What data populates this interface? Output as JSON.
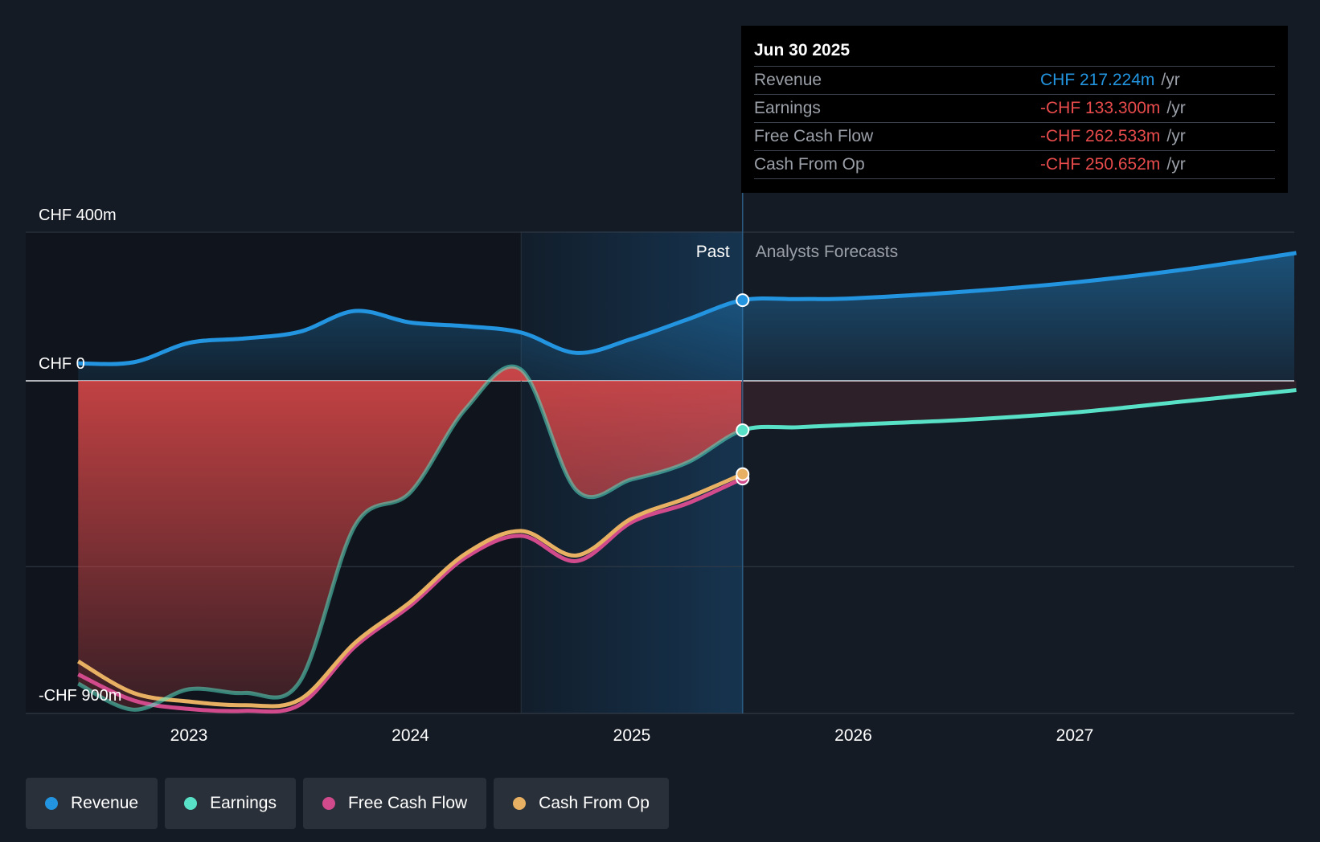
{
  "chart_data": {
    "type": "line",
    "title": "",
    "y_unit": "CHF m",
    "ylim": [
      -900,
      400
    ],
    "y_gridlines": [
      400,
      0,
      -500
    ],
    "y_tick_labels": [
      {
        "value": 400,
        "label": "CHF 400m"
      },
      {
        "value": 0,
        "label": "CHF 0"
      },
      {
        "value": -900,
        "label": "-CHF 900m"
      }
    ],
    "xlim": [
      2022.5,
      2028.0
    ],
    "x_ticks": [
      {
        "value": 2023,
        "label": "2023"
      },
      {
        "value": 2024,
        "label": "2024"
      },
      {
        "value": 2025,
        "label": "2025"
      },
      {
        "value": 2026,
        "label": "2026"
      },
      {
        "value": 2027,
        "label": "2027"
      }
    ],
    "past_label": "Past",
    "forecast_label": "Analysts Forecasts",
    "past_end": 2025.5,
    "highlight_start": 2024.5,
    "series": [
      {
        "name": "Revenue",
        "color": "#2394df",
        "forecast": true,
        "points": [
          [
            2022.5,
            47
          ],
          [
            2022.75,
            50
          ],
          [
            2023.0,
            102
          ],
          [
            2023.25,
            114
          ],
          [
            2023.5,
            132
          ],
          [
            2023.75,
            188
          ],
          [
            2024.0,
            157
          ],
          [
            2024.25,
            147
          ],
          [
            2024.5,
            130
          ],
          [
            2024.75,
            75
          ],
          [
            2025.0,
            113
          ],
          [
            2025.25,
            165
          ],
          [
            2025.5,
            217
          ],
          [
            2025.75,
            220
          ],
          [
            2026.0,
            222
          ],
          [
            2026.5,
            240
          ],
          [
            2027.0,
            265
          ],
          [
            2027.5,
            300
          ],
          [
            2028.0,
            344
          ]
        ]
      },
      {
        "name": "Earnings",
        "color": "#58e1c6",
        "forecast": true,
        "points": [
          [
            2022.5,
            -815
          ],
          [
            2022.75,
            -885
          ],
          [
            2023.0,
            -830
          ],
          [
            2023.25,
            -840
          ],
          [
            2023.5,
            -810
          ],
          [
            2023.75,
            -390
          ],
          [
            2024.0,
            -300
          ],
          [
            2024.25,
            -75
          ],
          [
            2024.5,
            30
          ],
          [
            2024.75,
            -295
          ],
          [
            2025.0,
            -265
          ],
          [
            2025.25,
            -220
          ],
          [
            2025.5,
            -133
          ],
          [
            2025.75,
            -125
          ],
          [
            2026.0,
            -118
          ],
          [
            2026.5,
            -105
          ],
          [
            2027.0,
            -85
          ],
          [
            2027.5,
            -55
          ],
          [
            2028.0,
            -25
          ]
        ]
      },
      {
        "name": "Free Cash Flow",
        "color": "#d04a8c",
        "forecast": false,
        "points": [
          [
            2022.5,
            -790
          ],
          [
            2022.75,
            -860
          ],
          [
            2023.0,
            -883
          ],
          [
            2023.25,
            -888
          ],
          [
            2023.5,
            -872
          ],
          [
            2023.75,
            -715
          ],
          [
            2024.0,
            -605
          ],
          [
            2024.25,
            -475
          ],
          [
            2024.5,
            -417
          ],
          [
            2024.75,
            -485
          ],
          [
            2025.0,
            -380
          ],
          [
            2025.25,
            -330
          ],
          [
            2025.5,
            -263
          ]
        ]
      },
      {
        "name": "Cash From Op",
        "color": "#e8b062",
        "forecast": false,
        "points": [
          [
            2022.5,
            -755
          ],
          [
            2022.75,
            -840
          ],
          [
            2023.0,
            -863
          ],
          [
            2023.25,
            -873
          ],
          [
            2023.5,
            -858
          ],
          [
            2023.75,
            -705
          ],
          [
            2024.0,
            -595
          ],
          [
            2024.25,
            -465
          ],
          [
            2024.5,
            -404
          ],
          [
            2024.75,
            -470
          ],
          [
            2025.0,
            -370
          ],
          [
            2025.25,
            -315
          ],
          [
            2025.5,
            -251
          ]
        ]
      }
    ]
  },
  "tooltip": {
    "date": "Jun 30 2025",
    "rows": [
      {
        "label": "Revenue",
        "value": "CHF 217.224m",
        "unit": "/yr",
        "color": "#2394df"
      },
      {
        "label": "Earnings",
        "value": "-CHF 133.300m",
        "unit": "/yr",
        "color": "#e84b4b"
      },
      {
        "label": "Free Cash Flow",
        "value": "-CHF 262.533m",
        "unit": "/yr",
        "color": "#e84b4b"
      },
      {
        "label": "Cash From Op",
        "value": "-CHF 250.652m",
        "unit": "/yr",
        "color": "#e84b4b"
      }
    ]
  },
  "legend": [
    {
      "label": "Revenue",
      "color": "#2394df"
    },
    {
      "label": "Earnings",
      "color": "#58e1c6"
    },
    {
      "label": "Free Cash Flow",
      "color": "#d04a8c"
    },
    {
      "label": "Cash From Op",
      "color": "#e8b062"
    }
  ]
}
